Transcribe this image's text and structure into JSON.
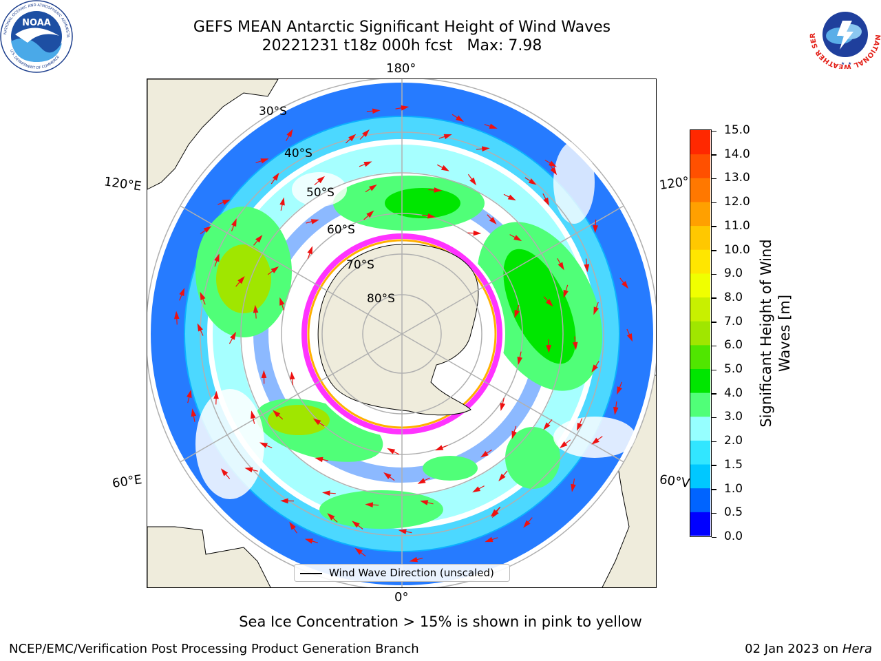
{
  "title": {
    "line1": "GEFS MEAN Antarctic Significant Height of Wind Waves",
    "line2": "20221231 t18z 000h fcst   Max: 7.98"
  },
  "map": {
    "lon_labels": {
      "top": "180°",
      "bottom": "0°",
      "upper_left": "120°E",
      "upper_right": "120°",
      "lower_left": "60°E",
      "lower_right": "60°V"
    },
    "lat_labels": [
      "30°S",
      "40°S",
      "50°S",
      "60°S",
      "70°S",
      "80°S"
    ],
    "legend_label": "Wind Wave Direction (unscaled)",
    "colors": {
      "land": "#efecdc",
      "ocean_low": "#ffffff",
      "ice": "#ff33ff",
      "grid": "#b0b0b0",
      "arrow": "#ee1111"
    }
  },
  "colorbar": {
    "label_line1": "Significant Height of Wind",
    "label_line2": "Waves [m]",
    "ticks": [
      "0.0",
      "0.5",
      "1.0",
      "1.5",
      "2.0",
      "3.0",
      "4.0",
      "5.0",
      "6.0",
      "7.0",
      "8.0",
      "9.0",
      "10.0",
      "11.0",
      "12.0",
      "13.0",
      "14.0",
      "15.0"
    ],
    "colors": [
      "#0000ff",
      "#0064ff",
      "#00c8ff",
      "#32e6ff",
      "#96ffff",
      "#50ff78",
      "#00e600",
      "#50e600",
      "#a0e600",
      "#c8f000",
      "#f0ff00",
      "#ffe600",
      "#ffc800",
      "#ffa000",
      "#ff7800",
      "#ff5000",
      "#ff2800"
    ]
  },
  "note": "Sea Ice Concentration > 15% is shown in pink to yellow",
  "footer": {
    "left": "NCEP/EMC/Verification Post Processing Product Generation Branch",
    "right_date": "02 Jan 2023 on ",
    "right_machine": "Hera"
  },
  "logos": {
    "noaa_text": "NOAA",
    "noaa_ring": "NATIONAL OCEANIC AND ATMOSPHERIC ADMINISTRATION",
    "noaa_ring_bottom": "U.S. DEPARTMENT OF COMMERCE",
    "nws_ring": "NATIONAL WEATHER SERVICE"
  }
}
